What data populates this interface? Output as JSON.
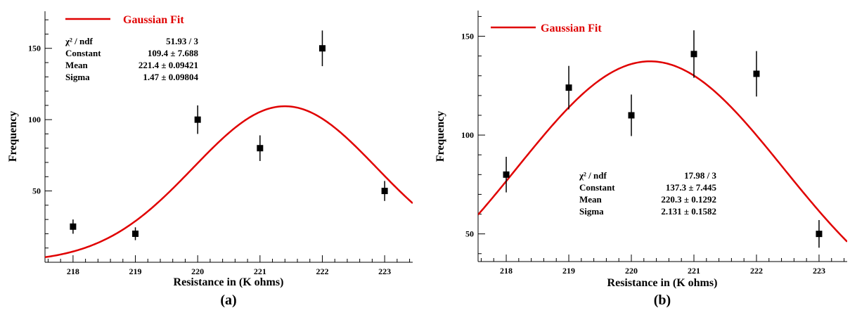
{
  "colors": {
    "fit": "#e00000",
    "points": "#000000",
    "axes": "#000000"
  },
  "panels": [
    {
      "caption": "(a)",
      "xlabel": "Resistance in (K ohms)",
      "ylabel": "Frequency",
      "legend": "Gaussian Fit",
      "stats": [
        {
          "name": "χ² / ndf",
          "value": "51.93 / 3"
        },
        {
          "name": "Constant",
          "value": "109.4 ± 7.688"
        },
        {
          "name": "Mean",
          "value": "221.4 ± 0.09421"
        },
        {
          "name": "Sigma",
          "value": "1.47 ± 0.09804"
        }
      ]
    },
    {
      "caption": "(b)",
      "xlabel": "Resistance in (K ohms)",
      "ylabel": "Frequency",
      "legend": "Gaussian Fit",
      "stats": [
        {
          "name": "χ² / ndf",
          "value": "17.98 / 3"
        },
        {
          "name": "Constant",
          "value": "137.3 ± 7.445"
        },
        {
          "name": "Mean",
          "value": "220.3 ± 0.1292"
        },
        {
          "name": "Sigma",
          "value": "2.131 ± 0.1582"
        }
      ]
    }
  ],
  "chart_data": [
    {
      "type": "scatter",
      "title": "",
      "xlabel": "Resistance in (K ohms)",
      "ylabel": "Frequency",
      "xlim": [
        217.55,
        223.45
      ],
      "ylim": [
        0,
        176
      ],
      "xticks": [
        218,
        219,
        220,
        221,
        222,
        223
      ],
      "yticks": [
        50,
        100,
        150
      ],
      "points": [
        {
          "x": 218,
          "y": 25,
          "err": 5
        },
        {
          "x": 219,
          "y": 20,
          "err": 4.5
        },
        {
          "x": 220,
          "y": 100,
          "err": 10
        },
        {
          "x": 221,
          "y": 80,
          "err": 9
        },
        {
          "x": 222,
          "y": 150,
          "err": 12.5
        },
        {
          "x": 223,
          "y": 50,
          "err": 7
        }
      ],
      "fit": {
        "name": "Gaussian Fit",
        "constant": 109.4,
        "mean": 221.4,
        "sigma": 1.47
      },
      "legend": "top-left"
    },
    {
      "type": "scatter",
      "title": "",
      "xlabel": "Resistance in (K ohms)",
      "ylabel": "Frequency",
      "xlim": [
        217.55,
        223.45
      ],
      "ylim": [
        36,
        163
      ],
      "xticks": [
        218,
        219,
        220,
        221,
        222,
        223
      ],
      "yticks": [
        50,
        100,
        150
      ],
      "points": [
        {
          "x": 218,
          "y": 80,
          "err": 9
        },
        {
          "x": 219,
          "y": 124,
          "err": 11
        },
        {
          "x": 220,
          "y": 110,
          "err": 10.5
        },
        {
          "x": 221,
          "y": 141,
          "err": 12
        },
        {
          "x": 222,
          "y": 131,
          "err": 11.5
        },
        {
          "x": 223,
          "y": 50,
          "err": 7
        }
      ],
      "fit": {
        "name": "Gaussian Fit",
        "constant": 137.3,
        "mean": 220.3,
        "sigma": 2.131
      },
      "legend": "top-left"
    }
  ]
}
